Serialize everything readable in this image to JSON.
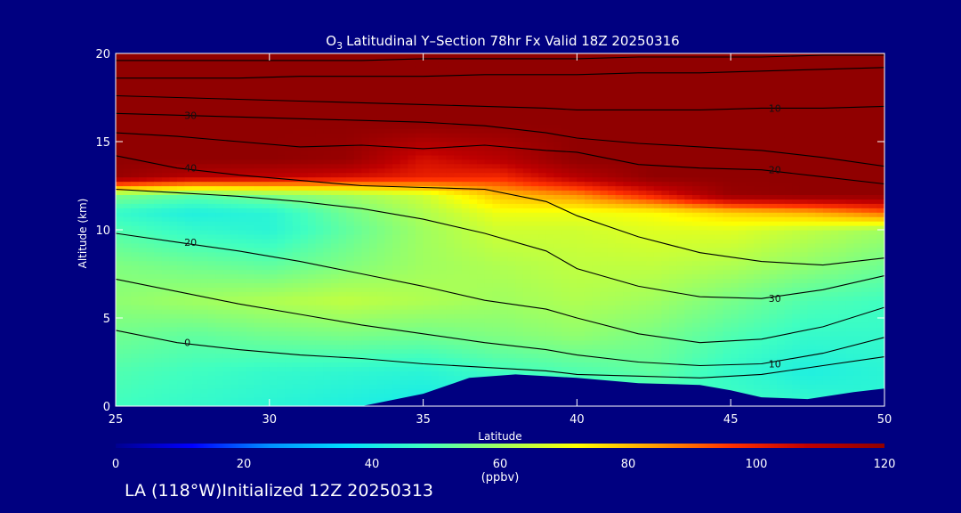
{
  "chart_data": {
    "type": "heatmap",
    "title": "Latitudinal Y–Section 78hr  Fx Valid 18Z 20250316",
    "title_prefix": "O",
    "title_subscript": "3",
    "xlabel": "Latitude",
    "ylabel": "Altitude (km)",
    "xlim": [
      25,
      50
    ],
    "ylim": [
      0,
      20
    ],
    "x_ticks": [
      25,
      30,
      35,
      40,
      45,
      50
    ],
    "y_ticks": [
      0,
      5,
      10,
      15,
      20
    ],
    "colorbar": {
      "label": "(ppbv)",
      "range": [
        0,
        120
      ],
      "ticks": [
        0,
        20,
        40,
        60,
        80,
        100,
        120
      ],
      "colors": [
        "#000090",
        "#0000ff",
        "#0090ff",
        "#00e0ff",
        "#40ffc0",
        "#a0ff60",
        "#ffff00",
        "#ffa000",
        "#ff3000",
        "#c00000",
        "#900000"
      ]
    },
    "field": {
      "lat": [
        25,
        27.5,
        30,
        32.5,
        35,
        37.5,
        40,
        42.5,
        45,
        47.5,
        50
      ],
      "alt": [
        0,
        2,
        4,
        6,
        8,
        10,
        11,
        12,
        13,
        14,
        16,
        18,
        20
      ],
      "o3": [
        [
          48,
          46,
          44,
          42,
          40,
          40,
          42,
          46,
          48,
          46,
          44
        ],
        [
          50,
          48,
          46,
          45,
          44,
          48,
          50,
          52,
          46,
          42,
          44
        ],
        [
          54,
          52,
          54,
          55,
          54,
          56,
          58,
          55,
          50,
          46,
          46
        ],
        [
          58,
          60,
          62,
          64,
          62,
          60,
          62,
          60,
          55,
          50,
          48
        ],
        [
          56,
          54,
          52,
          56,
          60,
          62,
          64,
          64,
          62,
          58,
          54
        ],
        [
          50,
          46,
          44,
          52,
          60,
          66,
          66,
          68,
          68,
          64,
          60
        ],
        [
          46,
          42,
          44,
          54,
          62,
          70,
          70,
          72,
          78,
          82,
          90
        ],
        [
          56,
          52,
          56,
          60,
          66,
          80,
          86,
          100,
          118,
          120,
          120
        ],
        [
          118,
          110,
          108,
          104,
          100,
          98,
          110,
          120,
          120,
          120,
          120
        ],
        [
          120,
          120,
          120,
          118,
          104,
          110,
          120,
          120,
          120,
          120,
          120
        ],
        [
          120,
          120,
          120,
          120,
          120,
          120,
          120,
          120,
          120,
          120,
          120
        ],
        [
          120,
          120,
          120,
          120,
          120,
          120,
          120,
          120,
          120,
          120,
          120
        ],
        [
          120,
          120,
          120,
          120,
          120,
          120,
          120,
          120,
          120,
          120,
          120
        ]
      ]
    },
    "terrain": {
      "lat": [
        25,
        30,
        33,
        35,
        36.5,
        38,
        40,
        42,
        44,
        45,
        46,
        47.5,
        49,
        50
      ],
      "alt": [
        0,
        0,
        0,
        0.7,
        1.6,
        1.8,
        1.6,
        1.3,
        1.2,
        0.9,
        0.5,
        0.4,
        0.8,
        1.0
      ]
    },
    "contours": [
      {
        "label": "0",
        "lat": [
          25,
          27,
          29,
          31,
          33,
          35,
          37,
          39,
          40,
          42,
          44,
          46,
          48,
          50
        ],
        "alt": [
          4.3,
          3.6,
          3.2,
          2.9,
          2.7,
          2.4,
          2.2,
          2.0,
          1.8,
          1.7,
          1.6,
          1.8,
          2.3,
          2.8
        ]
      },
      {
        "label": "10",
        "lat": [
          25,
          27,
          29,
          31,
          33,
          35,
          37,
          39,
          40,
          42,
          44,
          46,
          48,
          50
        ],
        "alt": [
          7.2,
          6.5,
          5.8,
          5.2,
          4.6,
          4.1,
          3.6,
          3.2,
          2.9,
          2.5,
          2.3,
          2.4,
          3.0,
          3.9
        ]
      },
      {
        "label": "20",
        "lat": [
          25,
          27,
          29,
          31,
          33,
          35,
          37,
          39,
          40,
          42,
          44,
          46,
          48,
          50
        ],
        "alt": [
          9.8,
          9.3,
          8.8,
          8.2,
          7.5,
          6.8,
          6.0,
          5.5,
          5.0,
          4.1,
          3.6,
          3.8,
          4.5,
          5.6
        ]
      },
      {
        "label": "30",
        "lat": [
          25,
          27,
          29,
          31,
          33,
          35,
          37,
          39,
          40,
          42,
          44,
          46,
          48,
          50
        ],
        "alt": [
          12.3,
          12.1,
          11.9,
          11.6,
          11.2,
          10.6,
          9.8,
          8.8,
          7.8,
          6.8,
          6.2,
          6.1,
          6.6,
          7.4
        ]
      },
      {
        "label": "40",
        "lat": [
          25,
          27,
          29,
          31,
          33,
          35,
          37,
          39,
          40,
          42,
          44,
          46,
          48,
          50
        ],
        "alt": [
          14.2,
          13.5,
          13.1,
          12.8,
          12.5,
          12.4,
          12.3,
          11.6,
          10.8,
          9.6,
          8.7,
          8.2,
          8.0,
          8.4
        ]
      },
      {
        "label": "20",
        "lat": [
          25,
          27,
          29,
          31,
          33,
          35,
          37,
          39,
          40,
          42,
          44,
          46,
          48,
          50
        ],
        "alt": [
          15.5,
          15.3,
          15.0,
          14.7,
          14.8,
          14.6,
          14.8,
          14.5,
          14.4,
          13.7,
          13.5,
          13.4,
          13.0,
          12.6
        ]
      },
      {
        "label": "30",
        "lat": [
          25,
          27,
          29,
          31,
          33,
          35,
          37,
          39,
          40,
          42,
          44,
          46,
          48,
          50
        ],
        "alt": [
          16.6,
          16.5,
          16.4,
          16.3,
          16.2,
          16.1,
          15.9,
          15.5,
          15.2,
          14.9,
          14.7,
          14.5,
          14.1,
          13.6
        ]
      },
      {
        "label": "10",
        "lat": [
          25,
          27,
          29,
          31,
          33,
          35,
          37,
          39,
          40,
          42,
          44,
          46,
          48,
          50
        ],
        "alt": [
          17.6,
          17.5,
          17.4,
          17.3,
          17.2,
          17.1,
          17.0,
          16.9,
          16.8,
          16.8,
          16.8,
          16.9,
          16.9,
          17.0
        ]
      },
      {
        "label": "",
        "lat": [
          25,
          27,
          29,
          31,
          33,
          35,
          37,
          39,
          40,
          42,
          44,
          46,
          48,
          50
        ],
        "alt": [
          18.6,
          18.6,
          18.6,
          18.7,
          18.7,
          18.7,
          18.8,
          18.8,
          18.8,
          18.9,
          18.9,
          19.0,
          19.1,
          19.2
        ]
      },
      {
        "label": "",
        "lat": [
          25,
          27,
          29,
          31,
          33,
          35,
          37,
          39,
          40,
          42,
          44,
          46,
          48,
          50
        ],
        "alt": [
          19.6,
          19.6,
          19.6,
          19.6,
          19.6,
          19.7,
          19.7,
          19.7,
          19.7,
          19.8,
          19.8,
          19.8,
          19.9,
          19.9
        ]
      }
    ],
    "grid": false
  },
  "footer": {
    "text": "LA (118°W)Initialized 12Z 20250313"
  }
}
